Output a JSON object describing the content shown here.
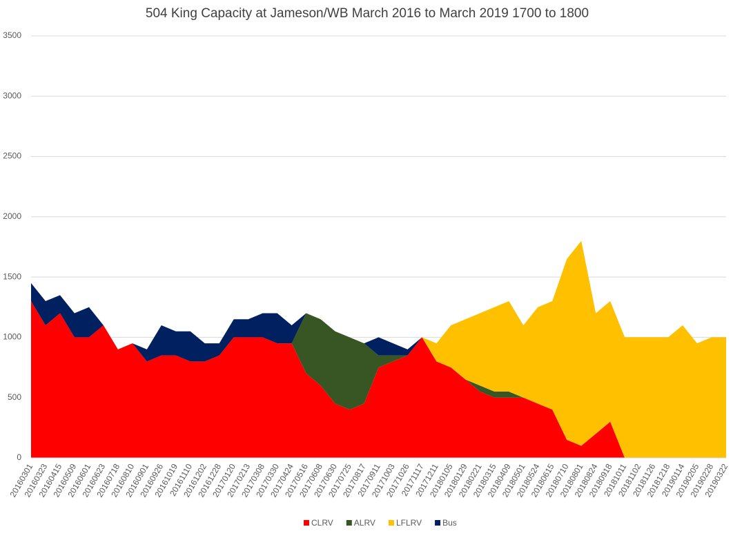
{
  "chart_data": {
    "type": "stacked_area",
    "title": "504 King Capacity at Jameson/WB March 2016 to March 2019  1700 to 1800",
    "categories": [
      "20160301",
      "20160323",
      "20160415",
      "20160509",
      "20160601",
      "20160623",
      "20160718",
      "20160810",
      "20160901",
      "20160926",
      "20161019",
      "20161110",
      "20161202",
      "20161228",
      "20170120",
      "20170213",
      "20170308",
      "20170330",
      "20170424",
      "20170516",
      "20170608",
      "20170630",
      "20170725",
      "20170817",
      "20170911",
      "20171003",
      "20171026",
      "20171117",
      "20171211",
      "20180105",
      "20180129",
      "20180221",
      "20180315",
      "20180409",
      "20180501",
      "20180524",
      "20180615",
      "20180710",
      "20180801",
      "20180824",
      "20180918",
      "20181011",
      "20181102",
      "20181126",
      "20181218",
      "20190114",
      "20190205",
      "20190228",
      "20190322"
    ],
    "series": [
      {
        "name": "CLRV",
        "color": "#ff0000",
        "values": [
          1300,
          1100,
          1200,
          1000,
          1000,
          1100,
          900,
          950,
          800,
          850,
          850,
          800,
          800,
          850,
          1000,
          1000,
          1000,
          950,
          950,
          700,
          600,
          450,
          400,
          450,
          750,
          800,
          850,
          1000,
          800,
          750,
          650,
          550,
          500,
          500,
          500,
          450,
          400,
          150,
          100,
          200,
          300,
          0,
          0,
          0,
          0,
          0,
          0,
          0,
          0
        ]
      },
      {
        "name": "ALRV",
        "color": "#375623",
        "values": [
          0,
          0,
          0,
          0,
          0,
          0,
          0,
          0,
          0,
          0,
          0,
          0,
          0,
          0,
          0,
          0,
          0,
          0,
          0,
          500,
          550,
          600,
          600,
          500,
          100,
          50,
          0,
          0,
          0,
          0,
          0,
          50,
          50,
          50,
          0,
          0,
          0,
          0,
          0,
          0,
          0,
          0,
          0,
          0,
          0,
          0,
          0,
          0,
          0
        ]
      },
      {
        "name": "LFLRV",
        "color": "#ffc000",
        "values": [
          0,
          0,
          0,
          0,
          0,
          0,
          0,
          0,
          0,
          0,
          0,
          0,
          0,
          0,
          0,
          0,
          0,
          0,
          0,
          0,
          0,
          0,
          0,
          0,
          0,
          0,
          0,
          0,
          150,
          350,
          500,
          600,
          700,
          750,
          600,
          800,
          900,
          1500,
          1700,
          1000,
          1000,
          1000,
          1000,
          1000,
          1000,
          1100,
          950,
          1000,
          1000
        ]
      },
      {
        "name": "Bus",
        "color": "#002060",
        "values": [
          150,
          200,
          150,
          200,
          250,
          0,
          0,
          0,
          100,
          250,
          200,
          250,
          150,
          100,
          150,
          150,
          200,
          250,
          150,
          0,
          0,
          0,
          0,
          0,
          150,
          100,
          50,
          0,
          0,
          0,
          0,
          0,
          0,
          0,
          0,
          0,
          0,
          0,
          0,
          0,
          0,
          0,
          0,
          0,
          0,
          0,
          0,
          0,
          0
        ]
      }
    ],
    "ylim": [
      0,
      3500
    ],
    "yticks": [
      0,
      500,
      1000,
      1500,
      2000,
      2500,
      3000,
      3500
    ],
    "grid": true,
    "legend": "bottom"
  }
}
